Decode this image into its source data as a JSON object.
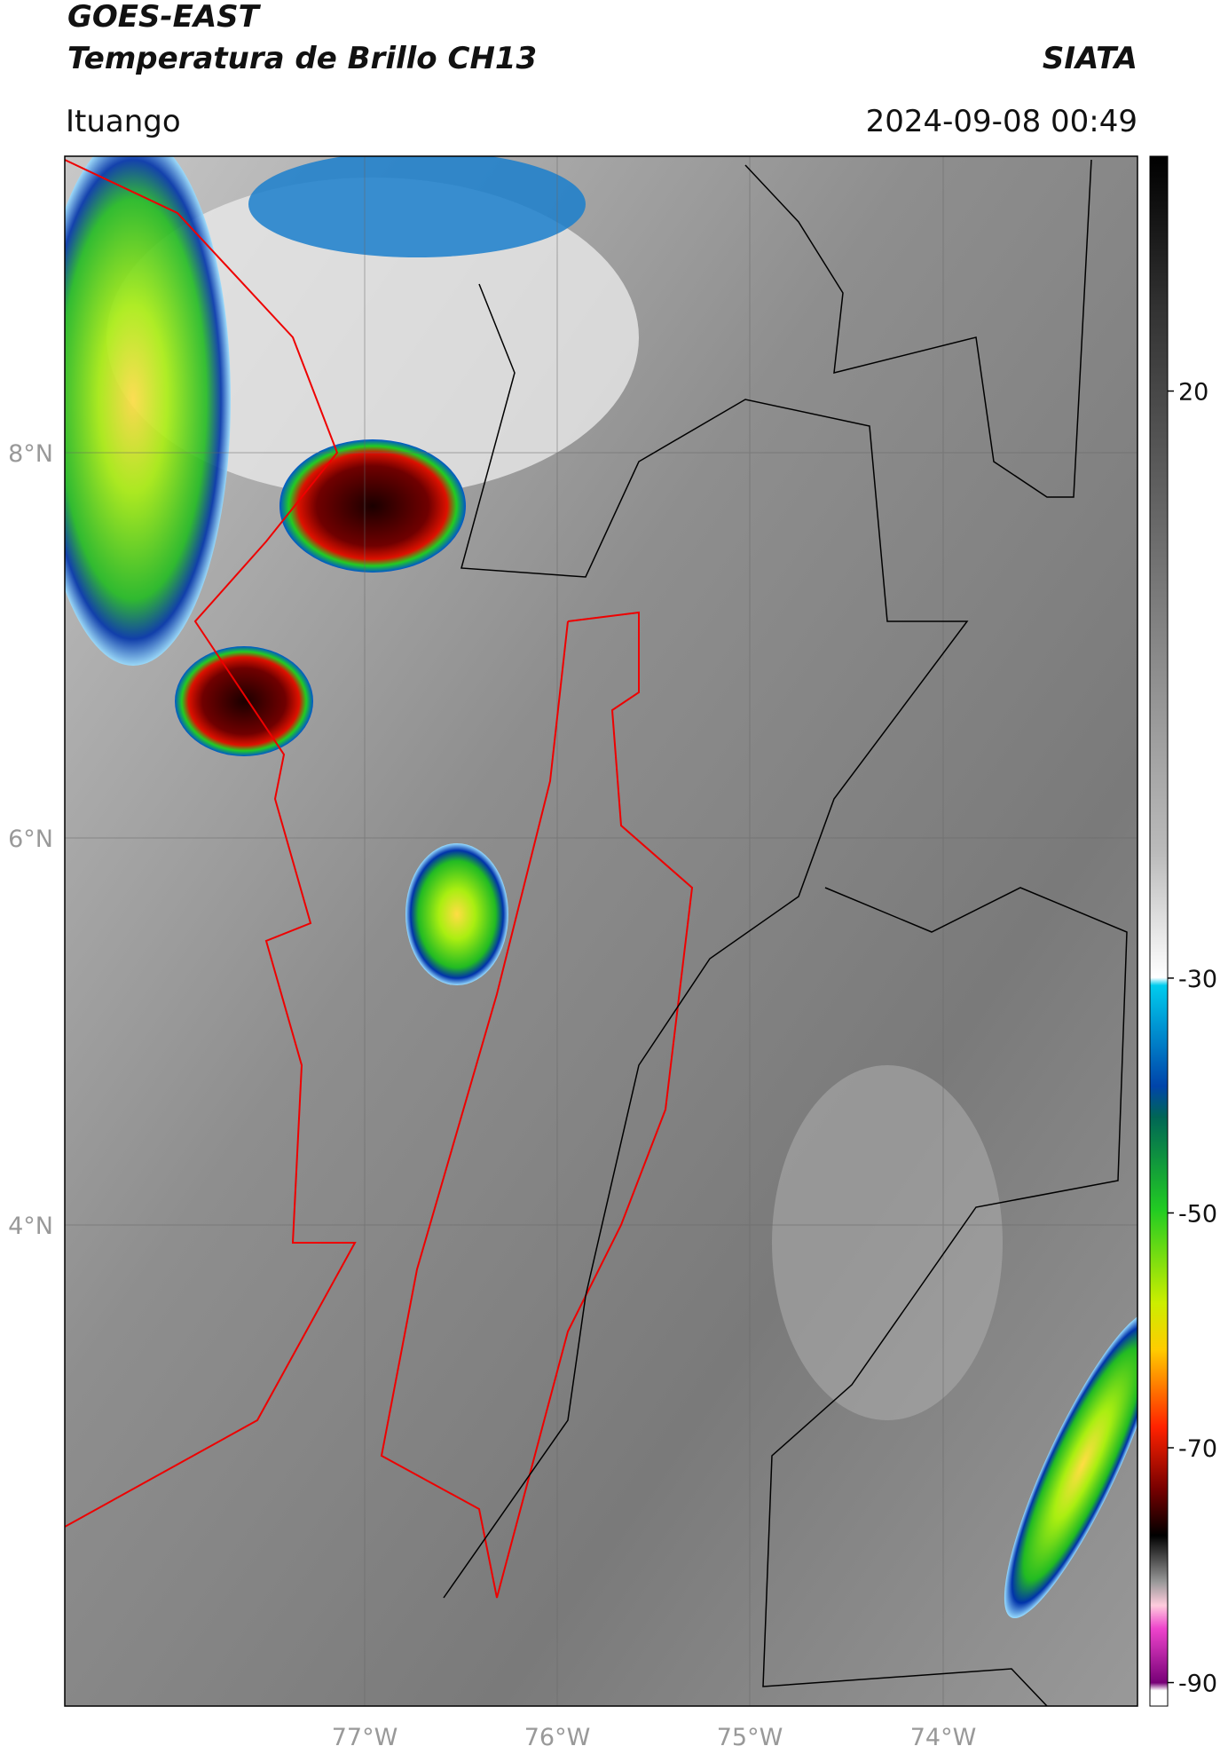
{
  "header": {
    "satellite": "GOES-EAST",
    "product": "Temperatura de Brillo CH13",
    "agency": "SIATA",
    "region": "Ituango",
    "timestamp": "2024-09-08 00:49"
  },
  "map": {
    "lat_labels": [
      "8°N",
      "6°N",
      "4°N"
    ],
    "lon_labels": [
      "77°W",
      "76°W",
      "75°W",
      "74°W"
    ]
  },
  "colorbar": {
    "lim": [
      -92,
      40
    ],
    "ticks": [
      20,
      -30,
      -50,
      -70,
      -90
    ]
  }
}
